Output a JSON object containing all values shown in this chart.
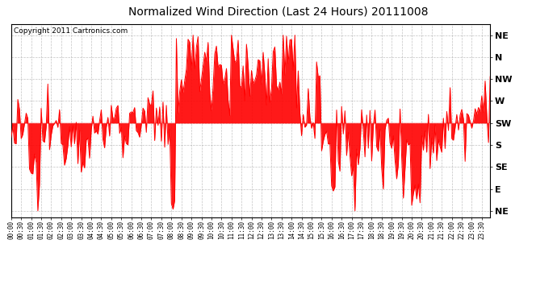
{
  "title": "Normalized Wind Direction (Last 24 Hours) 20111008",
  "copyright": "Copyright 2011 Cartronics.com",
  "line_color": "#ff0000",
  "background_color": "#ffffff",
  "grid_color": "#aaaaaa",
  "y_labels": [
    "NE",
    "N",
    "NW",
    "W",
    "SW",
    "S",
    "SE",
    "E",
    "NE"
  ],
  "ytick_positions": [
    8,
    7,
    6,
    5,
    4,
    3,
    2,
    1,
    0
  ],
  "ylim": [
    -0.3,
    8.5
  ],
  "title_fontsize": 10,
  "copyright_fontsize": 6.5,
  "ylabel_fontsize": 8,
  "xlabel_fontsize": 5.5
}
